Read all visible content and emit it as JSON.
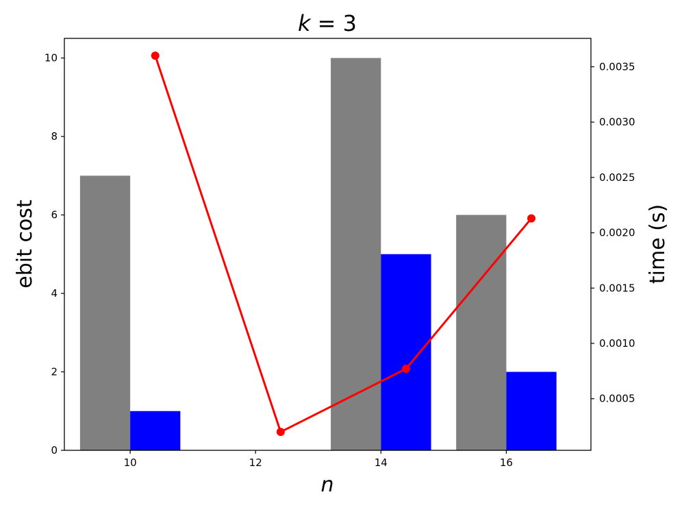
{
  "chart_data": {
    "type": "bar",
    "title_var": "k",
    "title_rest": " = 3",
    "xlabel": "n",
    "ylabel": "ebit cost",
    "y2label": "time (s)",
    "x_ticks": [
      "10",
      "12",
      "14",
      "16"
    ],
    "x_tick_values": [
      10,
      12,
      14,
      16
    ],
    "xlim": [
      8.95,
      17.35
    ],
    "ylim": [
      0,
      10.5
    ],
    "y_ticks": [
      "0",
      "2",
      "4",
      "6",
      "8",
      "10"
    ],
    "y_tick_values": [
      0,
      2,
      4,
      6,
      8,
      10
    ],
    "y2lim": [
      3.37e-05,
      0.0037566
    ],
    "y2_ticks": [
      "0.0005",
      "0.0010",
      "0.0015",
      "0.0020",
      "0.0025",
      "0.0030",
      "0.0035"
    ],
    "y2_tick_values": [
      0.0005,
      0.001,
      0.0015,
      0.002,
      0.0025,
      0.003,
      0.0035
    ],
    "bar_width": 0.8,
    "series": [
      {
        "color": "#808080",
        "x": [
          9.6,
          11.6,
          13.6,
          15.6
        ],
        "values": [
          7,
          0,
          10,
          6
        ]
      },
      {
        "color": "#0000ff",
        "x": [
          10.4,
          12.4,
          14.4,
          16.4
        ],
        "values": [
          1,
          0,
          5,
          2
        ]
      }
    ],
    "line_series": {
      "color": "#ff0000",
      "axis": "right",
      "x": [
        10.4,
        12.4,
        14.4,
        16.4
      ],
      "values": [
        0.0036,
        0.0002,
        0.00077,
        0.00213
      ]
    }
  }
}
